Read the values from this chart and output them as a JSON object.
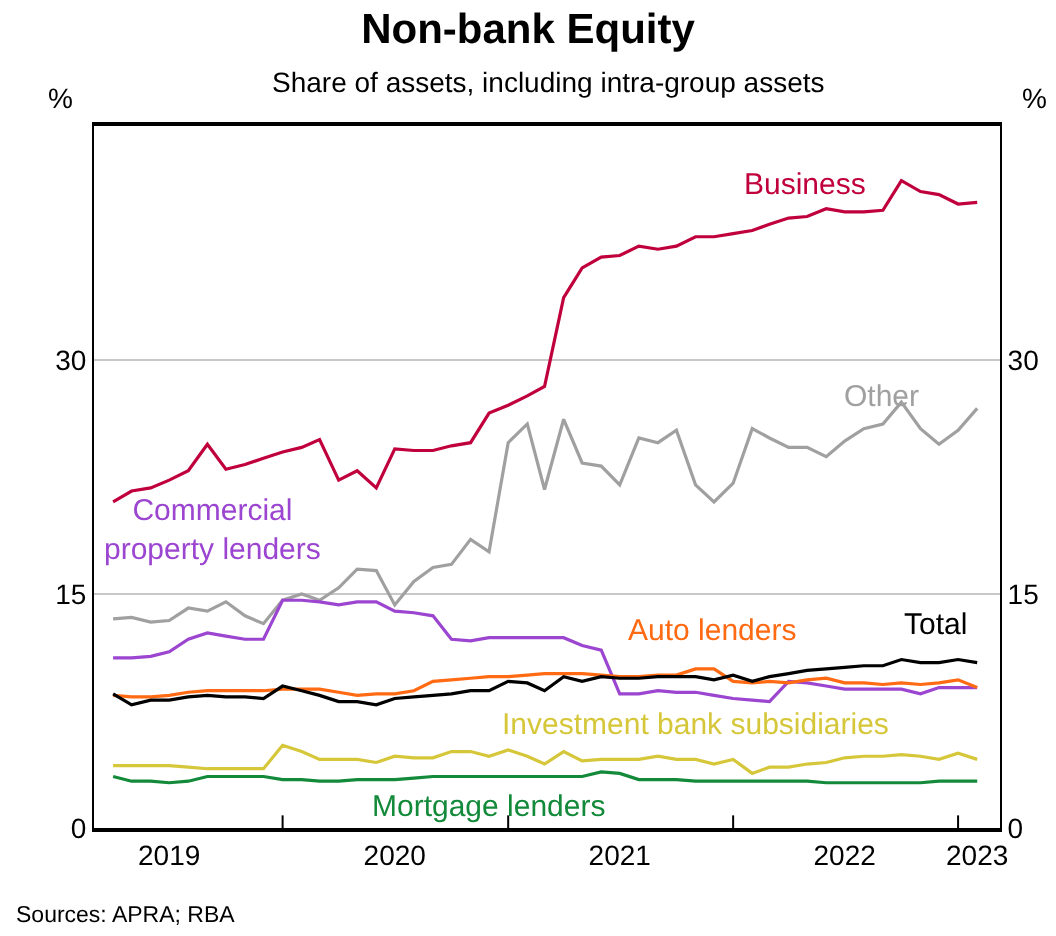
{
  "chart_data": {
    "type": "line",
    "title": "Non-bank Equity",
    "subtitle": "Share of assets, including intra-group assets",
    "ylabel": "%",
    "y2label": "%",
    "x": [
      "2019-04",
      "2019-05",
      "2019-06",
      "2019-07",
      "2019-08",
      "2019-09",
      "2019-10",
      "2019-11",
      "2019-12",
      "2020-01",
      "2020-02",
      "2020-03",
      "2020-04",
      "2020-05",
      "2020-06",
      "2020-07",
      "2020-08",
      "2020-09",
      "2020-10",
      "2020-11",
      "2020-12",
      "2021-01",
      "2021-02",
      "2021-03",
      "2021-04",
      "2021-05",
      "2021-06",
      "2021-07",
      "2021-08",
      "2021-09",
      "2021-10",
      "2021-11",
      "2021-12",
      "2022-01",
      "2022-02",
      "2022-03",
      "2022-04",
      "2022-05",
      "2022-06",
      "2022-07",
      "2022-08",
      "2022-09",
      "2022-10",
      "2022-11",
      "2022-12",
      "2023-01",
      "2023-02"
    ],
    "series": [
      {
        "name": "Business",
        "color": "#c0003c",
        "values": [
          20.9,
          21.6,
          21.8,
          22.3,
          22.9,
          24.6,
          23.0,
          23.3,
          23.7,
          24.1,
          24.4,
          24.9,
          22.3,
          22.9,
          21.8,
          24.3,
          24.2,
          24.2,
          24.5,
          24.7,
          26.6,
          27.1,
          27.7,
          28.3,
          34.0,
          35.9,
          36.6,
          36.7,
          37.3,
          37.1,
          37.3,
          37.9,
          37.9,
          38.1,
          38.3,
          38.7,
          39.1,
          39.2,
          39.7,
          39.5,
          39.5,
          39.6,
          41.5,
          40.8,
          40.6,
          40.0,
          40.1
        ]
      },
      {
        "name": "Other",
        "color": "#a0a0a0",
        "values": [
          13.4,
          13.5,
          13.2,
          13.3,
          14.1,
          13.9,
          14.5,
          13.6,
          13.1,
          14.6,
          15.0,
          14.6,
          15.4,
          16.6,
          16.5,
          14.3,
          15.8,
          16.7,
          16.9,
          18.5,
          17.7,
          24.7,
          25.9,
          21.7,
          26.2,
          23.4,
          23.2,
          22.0,
          25.0,
          24.7,
          25.5,
          22.0,
          20.9,
          22.1,
          25.6,
          25.0,
          24.4,
          24.4,
          23.8,
          24.8,
          25.6,
          25.9,
          27.3,
          25.6,
          24.6,
          25.5,
          26.9
        ]
      },
      {
        "name": "Commercial property lenders",
        "color": "#9b45d0",
        "values": [
          10.9,
          10.9,
          11.0,
          11.3,
          12.1,
          12.5,
          12.3,
          12.1,
          12.1,
          14.6,
          14.6,
          14.5,
          14.3,
          14.5,
          14.5,
          13.9,
          13.8,
          13.6,
          12.1,
          12.0,
          12.2,
          12.2,
          12.2,
          12.2,
          12.2,
          11.7,
          11.4,
          8.6,
          8.6,
          8.8,
          8.7,
          8.7,
          8.5,
          8.3,
          8.2,
          8.1,
          9.4,
          9.3,
          9.1,
          8.9,
          8.9,
          8.9,
          8.9,
          8.6,
          9.0,
          9.0,
          9.0
        ]
      },
      {
        "name": "Auto lenders",
        "color": "#ff6a13",
        "values": [
          8.5,
          8.4,
          8.4,
          8.5,
          8.7,
          8.8,
          8.8,
          8.8,
          8.8,
          8.9,
          8.9,
          8.9,
          8.7,
          8.5,
          8.6,
          8.6,
          8.8,
          9.4,
          9.5,
          9.6,
          9.7,
          9.7,
          9.8,
          9.9,
          9.9,
          9.9,
          9.8,
          9.7,
          9.7,
          9.8,
          9.8,
          10.2,
          10.2,
          9.4,
          9.3,
          9.4,
          9.3,
          9.5,
          9.6,
          9.3,
          9.3,
          9.2,
          9.3,
          9.2,
          9.3,
          9.5,
          9.0
        ]
      },
      {
        "name": "Total",
        "color": "#000000",
        "values": [
          8.6,
          7.9,
          8.2,
          8.2,
          8.4,
          8.5,
          8.4,
          8.4,
          8.3,
          9.1,
          8.8,
          8.5,
          8.1,
          8.1,
          7.9,
          8.3,
          8.4,
          8.5,
          8.6,
          8.8,
          8.8,
          9.4,
          9.3,
          8.8,
          9.7,
          9.4,
          9.7,
          9.6,
          9.6,
          9.7,
          9.7,
          9.7,
          9.5,
          9.8,
          9.4,
          9.7,
          9.9,
          10.1,
          10.2,
          10.3,
          10.4,
          10.4,
          10.8,
          10.6,
          10.6,
          10.8,
          10.6
        ]
      },
      {
        "name": "Investment bank subsidiaries",
        "color": "#d6c73a",
        "values": [
          4.0,
          4.0,
          4.0,
          4.0,
          3.9,
          3.8,
          3.8,
          3.8,
          3.8,
          5.3,
          4.9,
          4.4,
          4.4,
          4.4,
          4.2,
          4.6,
          4.5,
          4.5,
          4.9,
          4.9,
          4.6,
          5.0,
          4.6,
          4.1,
          4.9,
          4.3,
          4.4,
          4.4,
          4.4,
          4.6,
          4.4,
          4.4,
          4.1,
          4.4,
          3.5,
          3.9,
          3.9,
          4.1,
          4.2,
          4.5,
          4.6,
          4.6,
          4.7,
          4.6,
          4.4,
          4.8,
          4.4
        ]
      },
      {
        "name": "Mortgage lenders",
        "color": "#138a3a",
        "values": [
          3.3,
          3.0,
          3.0,
          2.9,
          3.0,
          3.3,
          3.3,
          3.3,
          3.3,
          3.1,
          3.1,
          3.0,
          3.0,
          3.1,
          3.1,
          3.1,
          3.2,
          3.3,
          3.3,
          3.3,
          3.3,
          3.3,
          3.3,
          3.3,
          3.3,
          3.3,
          3.6,
          3.5,
          3.1,
          3.1,
          3.1,
          3.0,
          3.0,
          3.0,
          3.0,
          3.0,
          3.0,
          3.0,
          2.9,
          2.9,
          2.9,
          2.9,
          2.9,
          2.9,
          3.0,
          3.0,
          3.0
        ]
      }
    ],
    "xlim": [
      "2019-03",
      "2023-03-10"
    ],
    "xticks": [
      {
        "value": "2019-07",
        "label": "2019"
      },
      {
        "value": "2020-01",
        "label": null
      },
      {
        "value": "2020-07",
        "label": "2020"
      },
      {
        "value": "2021-01",
        "label": null
      },
      {
        "value": "2021-07",
        "label": "2021"
      },
      {
        "value": "2022-01",
        "label": null
      },
      {
        "value": "2022-07",
        "label": "2022"
      },
      {
        "value": "2023-01",
        "label": null
      },
      {
        "value": "2023-02",
        "label": "2023"
      }
    ],
    "ylim": [
      0,
      45
    ],
    "yticks": [
      0,
      15,
      30
    ],
    "y2lim": [
      0,
      45
    ],
    "y2ticks": [
      0,
      15,
      30
    ],
    "grid": "y",
    "legend": false,
    "marker": "none",
    "line_style": "solid",
    "annotations": [
      "Sources: APRA; RBA"
    ]
  }
}
